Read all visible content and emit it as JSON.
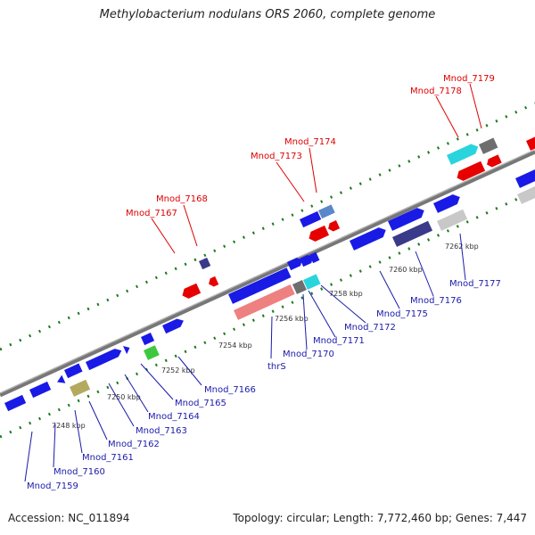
{
  "title": "Methylobacterium nodulans ORS 2060, complete genome",
  "footer": {
    "accession": "Accession: NC_011894",
    "summary": "Topology: circular; Length: 7,772,460 bp; Genes: 7,447"
  },
  "colors": {
    "forward_gene": "#1a1ae6",
    "reverse_gene": "#e60000",
    "light_blue_gene": "#5b88c8",
    "cyan_gene": "#2ad4dd",
    "gray_gene": "#6e6e6e",
    "light_gray_gene": "#c8c8c8",
    "indigo_gene": "#3a3a8a",
    "salmon_gene": "#ee8080",
    "green_gene": "#3dc93d",
    "olive_gene": "#b3aa60",
    "label_forward": "#1a1aaa",
    "label_reverse": "#dd0000",
    "tick": "#1e7a1e",
    "backbone": "#777777"
  },
  "ruler_labels": [
    "7248 kbp",
    "7250 kbp",
    "7252 kbp",
    "7254 kbp",
    "7256 kbp",
    "7258 kbp",
    "7260 kbp",
    "7262 kbp"
  ],
  "gene_labels": {
    "top": [
      "Mnod_7167",
      "Mnod_7168",
      "Mnod_7173",
      "Mnod_7174",
      "Mnod_7178",
      "Mnod_7179"
    ],
    "bottom": [
      "Mnod_7159",
      "Mnod_7160",
      "Mnod_7161",
      "Mnod_7162",
      "Mnod_7163",
      "Mnod_7164",
      "Mnod_7165",
      "Mnod_7166",
      "thrS",
      "Mnod_7170",
      "Mnod_7171",
      "Mnod_7172",
      "Mnod_7175",
      "Mnod_7176",
      "Mnod_7177"
    ]
  }
}
